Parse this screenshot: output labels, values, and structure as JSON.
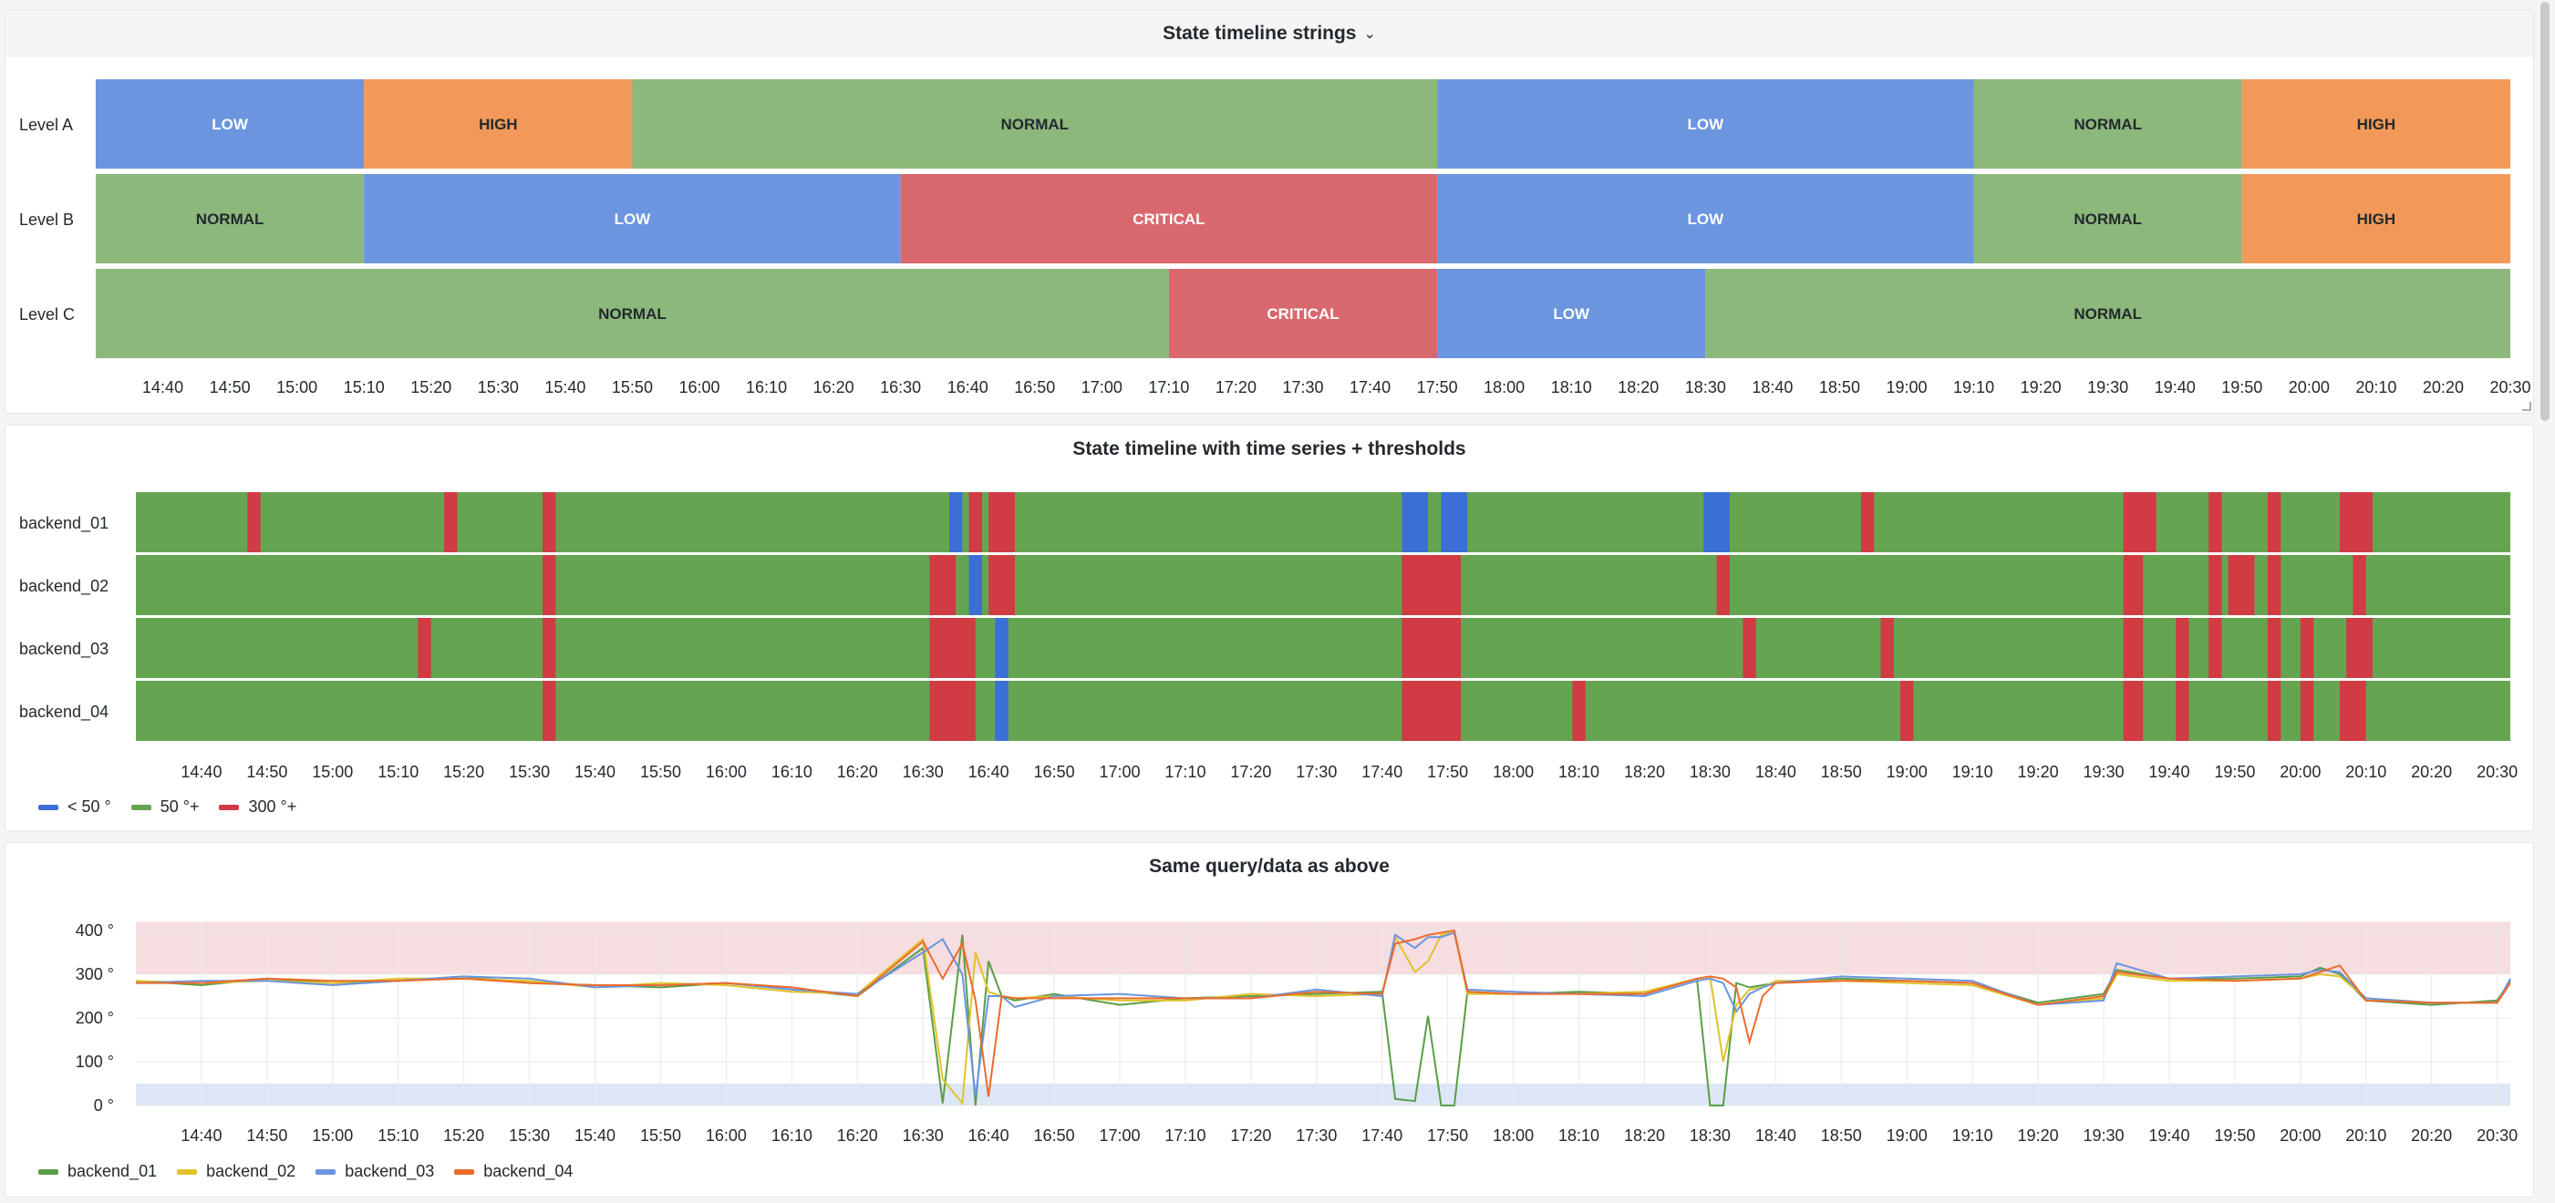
{
  "panel1": {
    "title": "State timeline strings",
    "chevron_icon": "chevron-down-icon",
    "rows": [
      {
        "label": "Level A",
        "segments": [
          {
            "start": "14:30",
            "end": "15:10",
            "state": "LOW"
          },
          {
            "start": "15:10",
            "end": "15:50",
            "state": "HIGH"
          },
          {
            "start": "15:50",
            "end": "17:50",
            "state": "NORMAL"
          },
          {
            "start": "17:50",
            "end": "19:10",
            "state": "LOW"
          },
          {
            "start": "19:10",
            "end": "19:50",
            "state": "NORMAL"
          },
          {
            "start": "19:50",
            "end": "20:30",
            "state": "HIGH"
          }
        ]
      },
      {
        "label": "Level B",
        "segments": [
          {
            "start": "14:30",
            "end": "15:10",
            "state": "NORMAL"
          },
          {
            "start": "15:10",
            "end": "16:30",
            "state": "LOW"
          },
          {
            "start": "16:30",
            "end": "17:50",
            "state": "CRITICAL"
          },
          {
            "start": "17:50",
            "end": "19:10",
            "state": "LOW"
          },
          {
            "start": "19:10",
            "end": "19:50",
            "state": "NORMAL"
          },
          {
            "start": "19:50",
            "end": "20:30",
            "state": "HIGH"
          }
        ]
      },
      {
        "label": "Level C",
        "segments": [
          {
            "start": "14:30",
            "end": "17:10",
            "state": "NORMAL"
          },
          {
            "start": "17:10",
            "end": "17:50",
            "state": "CRITICAL"
          },
          {
            "start": "17:50",
            "end": "18:30",
            "state": "LOW"
          },
          {
            "start": "18:30",
            "end": "20:30",
            "state": "NORMAL"
          }
        ]
      }
    ],
    "state_colors": {
      "LOW": {
        "fill": "#6b95de",
        "text": "#ffffff"
      },
      "HIGH": {
        "fill": "#f2995a",
        "text": "#24292e"
      },
      "NORMAL": {
        "fill": "#8cb87c",
        "text": "#24292e"
      },
      "CRITICAL": {
        "fill": "#d9686e",
        "text": "#ffffff"
      }
    }
  },
  "panel2": {
    "title": "State timeline with time series + thresholds",
    "legend": [
      {
        "label": "< 50 °",
        "color": "#3b6fd6"
      },
      {
        "label": "50 °+",
        "color": "#65a552"
      },
      {
        "label": "300 °+",
        "color": "#d13b44"
      }
    ]
  },
  "panel3": {
    "title": "Same query/data as above",
    "legend": [
      {
        "label": "backend_01",
        "color": "#5a9e46"
      },
      {
        "label": "backend_02",
        "color": "#e1c22a"
      },
      {
        "label": "backend_03",
        "color": "#6b95de"
      },
      {
        "label": "backend_04",
        "color": "#ec6b2d"
      }
    ]
  },
  "chart_data": [
    {
      "type": "state-timeline",
      "title": "State timeline strings",
      "x_ticks": [
        "14:40",
        "14:50",
        "15:00",
        "15:10",
        "15:20",
        "15:30",
        "15:40",
        "15:50",
        "16:00",
        "16:10",
        "16:20",
        "16:30",
        "16:40",
        "16:50",
        "17:00",
        "17:10",
        "17:20",
        "17:30",
        "17:40",
        "17:50",
        "18:00",
        "18:10",
        "18:20",
        "18:30",
        "18:40",
        "18:50",
        "19:00",
        "19:10",
        "19:20",
        "19:30",
        "19:40",
        "19:50",
        "20:00",
        "20:10",
        "20:20",
        "20:30"
      ],
      "x_range": [
        "14:30",
        "20:30"
      ],
      "series": [
        "Level A",
        "Level B",
        "Level C"
      ]
    },
    {
      "type": "state-timeline",
      "title": "State timeline with time series + thresholds",
      "x_ticks": [
        "14:40",
        "14:50",
        "15:00",
        "15:10",
        "15:20",
        "15:30",
        "15:40",
        "15:50",
        "16:00",
        "16:10",
        "16:20",
        "16:30",
        "16:40",
        "16:50",
        "17:00",
        "17:10",
        "17:20",
        "17:30",
        "17:40",
        "17:50",
        "18:00",
        "18:10",
        "18:20",
        "18:30",
        "18:40",
        "18:50",
        "19:00",
        "19:10",
        "19:20",
        "19:30",
        "19:40",
        "19:50",
        "20:00",
        "20:10",
        "20:20",
        "20:30"
      ],
      "x_range": [
        "14:30",
        "20:32"
      ],
      "base_state": "50 °+",
      "series": [
        {
          "name": "backend_01",
          "segments": [
            {
              "start": "14:47",
              "end": "14:49",
              "state": "300 °+"
            },
            {
              "start": "15:17",
              "end": "15:19",
              "state": "300 °+"
            },
            {
              "start": "15:32",
              "end": "15:34",
              "state": "300 °+"
            },
            {
              "start": "16:34",
              "end": "16:36",
              "state": "< 50 °"
            },
            {
              "start": "16:37",
              "end": "16:39",
              "state": "300 °+"
            },
            {
              "start": "16:40",
              "end": "16:44",
              "state": "300 °+"
            },
            {
              "start": "17:43",
              "end": "17:47",
              "state": "< 50 °"
            },
            {
              "start": "17:49",
              "end": "17:53",
              "state": "< 50 °"
            },
            {
              "start": "18:29",
              "end": "18:33",
              "state": "< 50 °"
            },
            {
              "start": "18:53",
              "end": "18:55",
              "state": "300 °+"
            },
            {
              "start": "19:33",
              "end": "19:38",
              "state": "300 °+"
            },
            {
              "start": "19:46",
              "end": "19:48",
              "state": "300 °+"
            },
            {
              "start": "19:55",
              "end": "19:57",
              "state": "300 °+"
            },
            {
              "start": "20:06",
              "end": "20:11",
              "state": "300 °+"
            }
          ]
        },
        {
          "name": "backend_02",
          "segments": [
            {
              "start": "15:32",
              "end": "15:34",
              "state": "300 °+"
            },
            {
              "start": "16:31",
              "end": "16:35",
              "state": "300 °+"
            },
            {
              "start": "16:37",
              "end": "16:39",
              "state": "< 50 °"
            },
            {
              "start": "16:40",
              "end": "16:44",
              "state": "300 °+"
            },
            {
              "start": "17:43",
              "end": "17:52",
              "state": "300 °+"
            },
            {
              "start": "18:31",
              "end": "18:33",
              "state": "300 °+"
            },
            {
              "start": "19:33",
              "end": "19:36",
              "state": "300 °+"
            },
            {
              "start": "19:46",
              "end": "19:48",
              "state": "300 °+"
            },
            {
              "start": "19:49",
              "end": "19:53",
              "state": "300 °+"
            },
            {
              "start": "19:55",
              "end": "19:57",
              "state": "300 °+"
            },
            {
              "start": "20:08",
              "end": "20:10",
              "state": "300 °+"
            }
          ]
        },
        {
          "name": "backend_03",
          "segments": [
            {
              "start": "15:13",
              "end": "15:15",
              "state": "300 °+"
            },
            {
              "start": "15:32",
              "end": "15:34",
              "state": "300 °+"
            },
            {
              "start": "16:31",
              "end": "16:38",
              "state": "300 °+"
            },
            {
              "start": "16:41",
              "end": "16:43",
              "state": "< 50 °"
            },
            {
              "start": "17:43",
              "end": "17:52",
              "state": "300 °+"
            },
            {
              "start": "18:35",
              "end": "18:37",
              "state": "300 °+"
            },
            {
              "start": "18:56",
              "end": "18:58",
              "state": "300 °+"
            },
            {
              "start": "19:33",
              "end": "19:36",
              "state": "300 °+"
            },
            {
              "start": "19:41",
              "end": "19:43",
              "state": "300 °+"
            },
            {
              "start": "19:46",
              "end": "19:48",
              "state": "300 °+"
            },
            {
              "start": "19:55",
              "end": "19:57",
              "state": "300 °+"
            },
            {
              "start": "20:00",
              "end": "20:02",
              "state": "300 °+"
            },
            {
              "start": "20:07",
              "end": "20:11",
              "state": "300 °+"
            }
          ]
        },
        {
          "name": "backend_04",
          "segments": [
            {
              "start": "15:32",
              "end": "15:34",
              "state": "300 °+"
            },
            {
              "start": "16:31",
              "end": "16:38",
              "state": "300 °+"
            },
            {
              "start": "16:41",
              "end": "16:43",
              "state": "< 50 °"
            },
            {
              "start": "17:43",
              "end": "17:52",
              "state": "300 °+"
            },
            {
              "start": "18:09",
              "end": "18:11",
              "state": "300 °+"
            },
            {
              "start": "18:59",
              "end": "19:01",
              "state": "300 °+"
            },
            {
              "start": "19:33",
              "end": "19:36",
              "state": "300 °+"
            },
            {
              "start": "19:41",
              "end": "19:43",
              "state": "300 °+"
            },
            {
              "start": "19:55",
              "end": "19:57",
              "state": "300 °+"
            },
            {
              "start": "20:00",
              "end": "20:02",
              "state": "300 °+"
            },
            {
              "start": "20:06",
              "end": "20:10",
              "state": "300 °+"
            }
          ]
        }
      ]
    },
    {
      "type": "line",
      "title": "Same query/data as above",
      "x_ticks": [
        "14:40",
        "14:50",
        "15:00",
        "15:10",
        "15:20",
        "15:30",
        "15:40",
        "15:50",
        "16:00",
        "16:10",
        "16:20",
        "16:30",
        "16:40",
        "16:50",
        "17:00",
        "17:10",
        "17:20",
        "17:30",
        "17:40",
        "17:50",
        "18:00",
        "18:10",
        "18:20",
        "18:30",
        "18:40",
        "18:50",
        "19:00",
        "19:10",
        "19:20",
        "19:30",
        "19:40",
        "19:50",
        "20:00",
        "20:10",
        "20:20",
        "20:30"
      ],
      "x_range": [
        "14:30",
        "20:32"
      ],
      "y_ticks": [
        "400 °",
        "300 °",
        "200 °",
        "100 °",
        "0 °"
      ],
      "ylim": [
        0,
        440
      ],
      "threshold_bands": [
        {
          "from": 300,
          "to": 450,
          "color": "#f6dde0"
        },
        {
          "from": 0,
          "to": 50,
          "color": "#dde6f6"
        }
      ],
      "grid": true,
      "legend": "bottom-left",
      "x": [
        "14:30",
        "14:40",
        "14:50",
        "15:00",
        "15:10",
        "15:20",
        "15:30",
        "15:40",
        "15:50",
        "16:00",
        "16:10",
        "16:20",
        "16:30",
        "16:33",
        "16:36",
        "16:38",
        "16:40",
        "16:42",
        "16:44",
        "16:50",
        "17:00",
        "17:10",
        "17:20",
        "17:30",
        "17:40",
        "17:42",
        "17:45",
        "17:47",
        "17:49",
        "17:51",
        "17:53",
        "18:00",
        "18:10",
        "18:20",
        "18:28",
        "18:30",
        "18:32",
        "18:34",
        "18:36",
        "18:38",
        "18:40",
        "18:50",
        "19:00",
        "19:10",
        "19:20",
        "19:30",
        "19:32",
        "19:40",
        "19:50",
        "20:00",
        "20:03",
        "20:06",
        "20:10",
        "20:20",
        "20:30",
        "20:32"
      ],
      "series": [
        {
          "name": "backend_01",
          "values": [
            285,
            275,
            290,
            280,
            285,
            295,
            280,
            275,
            270,
            280,
            265,
            250,
            360,
            5,
            390,
            0,
            330,
            250,
            240,
            255,
            230,
            245,
            250,
            255,
            260,
            15,
            10,
            205,
            0,
            0,
            260,
            255,
            260,
            255,
            290,
            0,
            0,
            280,
            270,
            275,
            280,
            290,
            285,
            280,
            235,
            255,
            310,
            290,
            290,
            295,
            315,
            300,
            240,
            230,
            240,
            285
          ]
        },
        {
          "name": "backend_02",
          "values": [
            285,
            280,
            285,
            280,
            290,
            290,
            285,
            270,
            280,
            275,
            260,
            255,
            380,
            60,
            5,
            350,
            260,
            250,
            245,
            250,
            240,
            240,
            255,
            250,
            255,
            385,
            305,
            330,
            390,
            395,
            255,
            255,
            255,
            260,
            290,
            295,
            100,
            230,
            265,
            270,
            285,
            285,
            280,
            275,
            230,
            245,
            300,
            285,
            285,
            290,
            300,
            295,
            245,
            235,
            235,
            280
          ]
        },
        {
          "name": "backend_03",
          "values": [
            280,
            285,
            285,
            275,
            285,
            295,
            290,
            270,
            275,
            280,
            265,
            255,
            350,
            380,
            300,
            20,
            250,
            250,
            225,
            250,
            255,
            245,
            245,
            265,
            250,
            390,
            360,
            385,
            385,
            395,
            265,
            260,
            255,
            250,
            285,
            290,
            280,
            215,
            255,
            270,
            280,
            295,
            290,
            285,
            230,
            240,
            325,
            290,
            295,
            300,
            310,
            305,
            245,
            235,
            235,
            290
          ]
        },
        {
          "name": "backend_04",
          "values": [
            280,
            280,
            290,
            285,
            285,
            290,
            280,
            275,
            275,
            280,
            270,
            250,
            375,
            290,
            370,
            240,
            20,
            250,
            245,
            245,
            245,
            245,
            245,
            260,
            255,
            370,
            380,
            390,
            395,
            400,
            260,
            255,
            255,
            255,
            290,
            295,
            290,
            270,
            145,
            250,
            280,
            285,
            285,
            280,
            230,
            250,
            305,
            290,
            285,
            290,
            305,
            320,
            240,
            235,
            235,
            280
          ]
        }
      ]
    }
  ]
}
